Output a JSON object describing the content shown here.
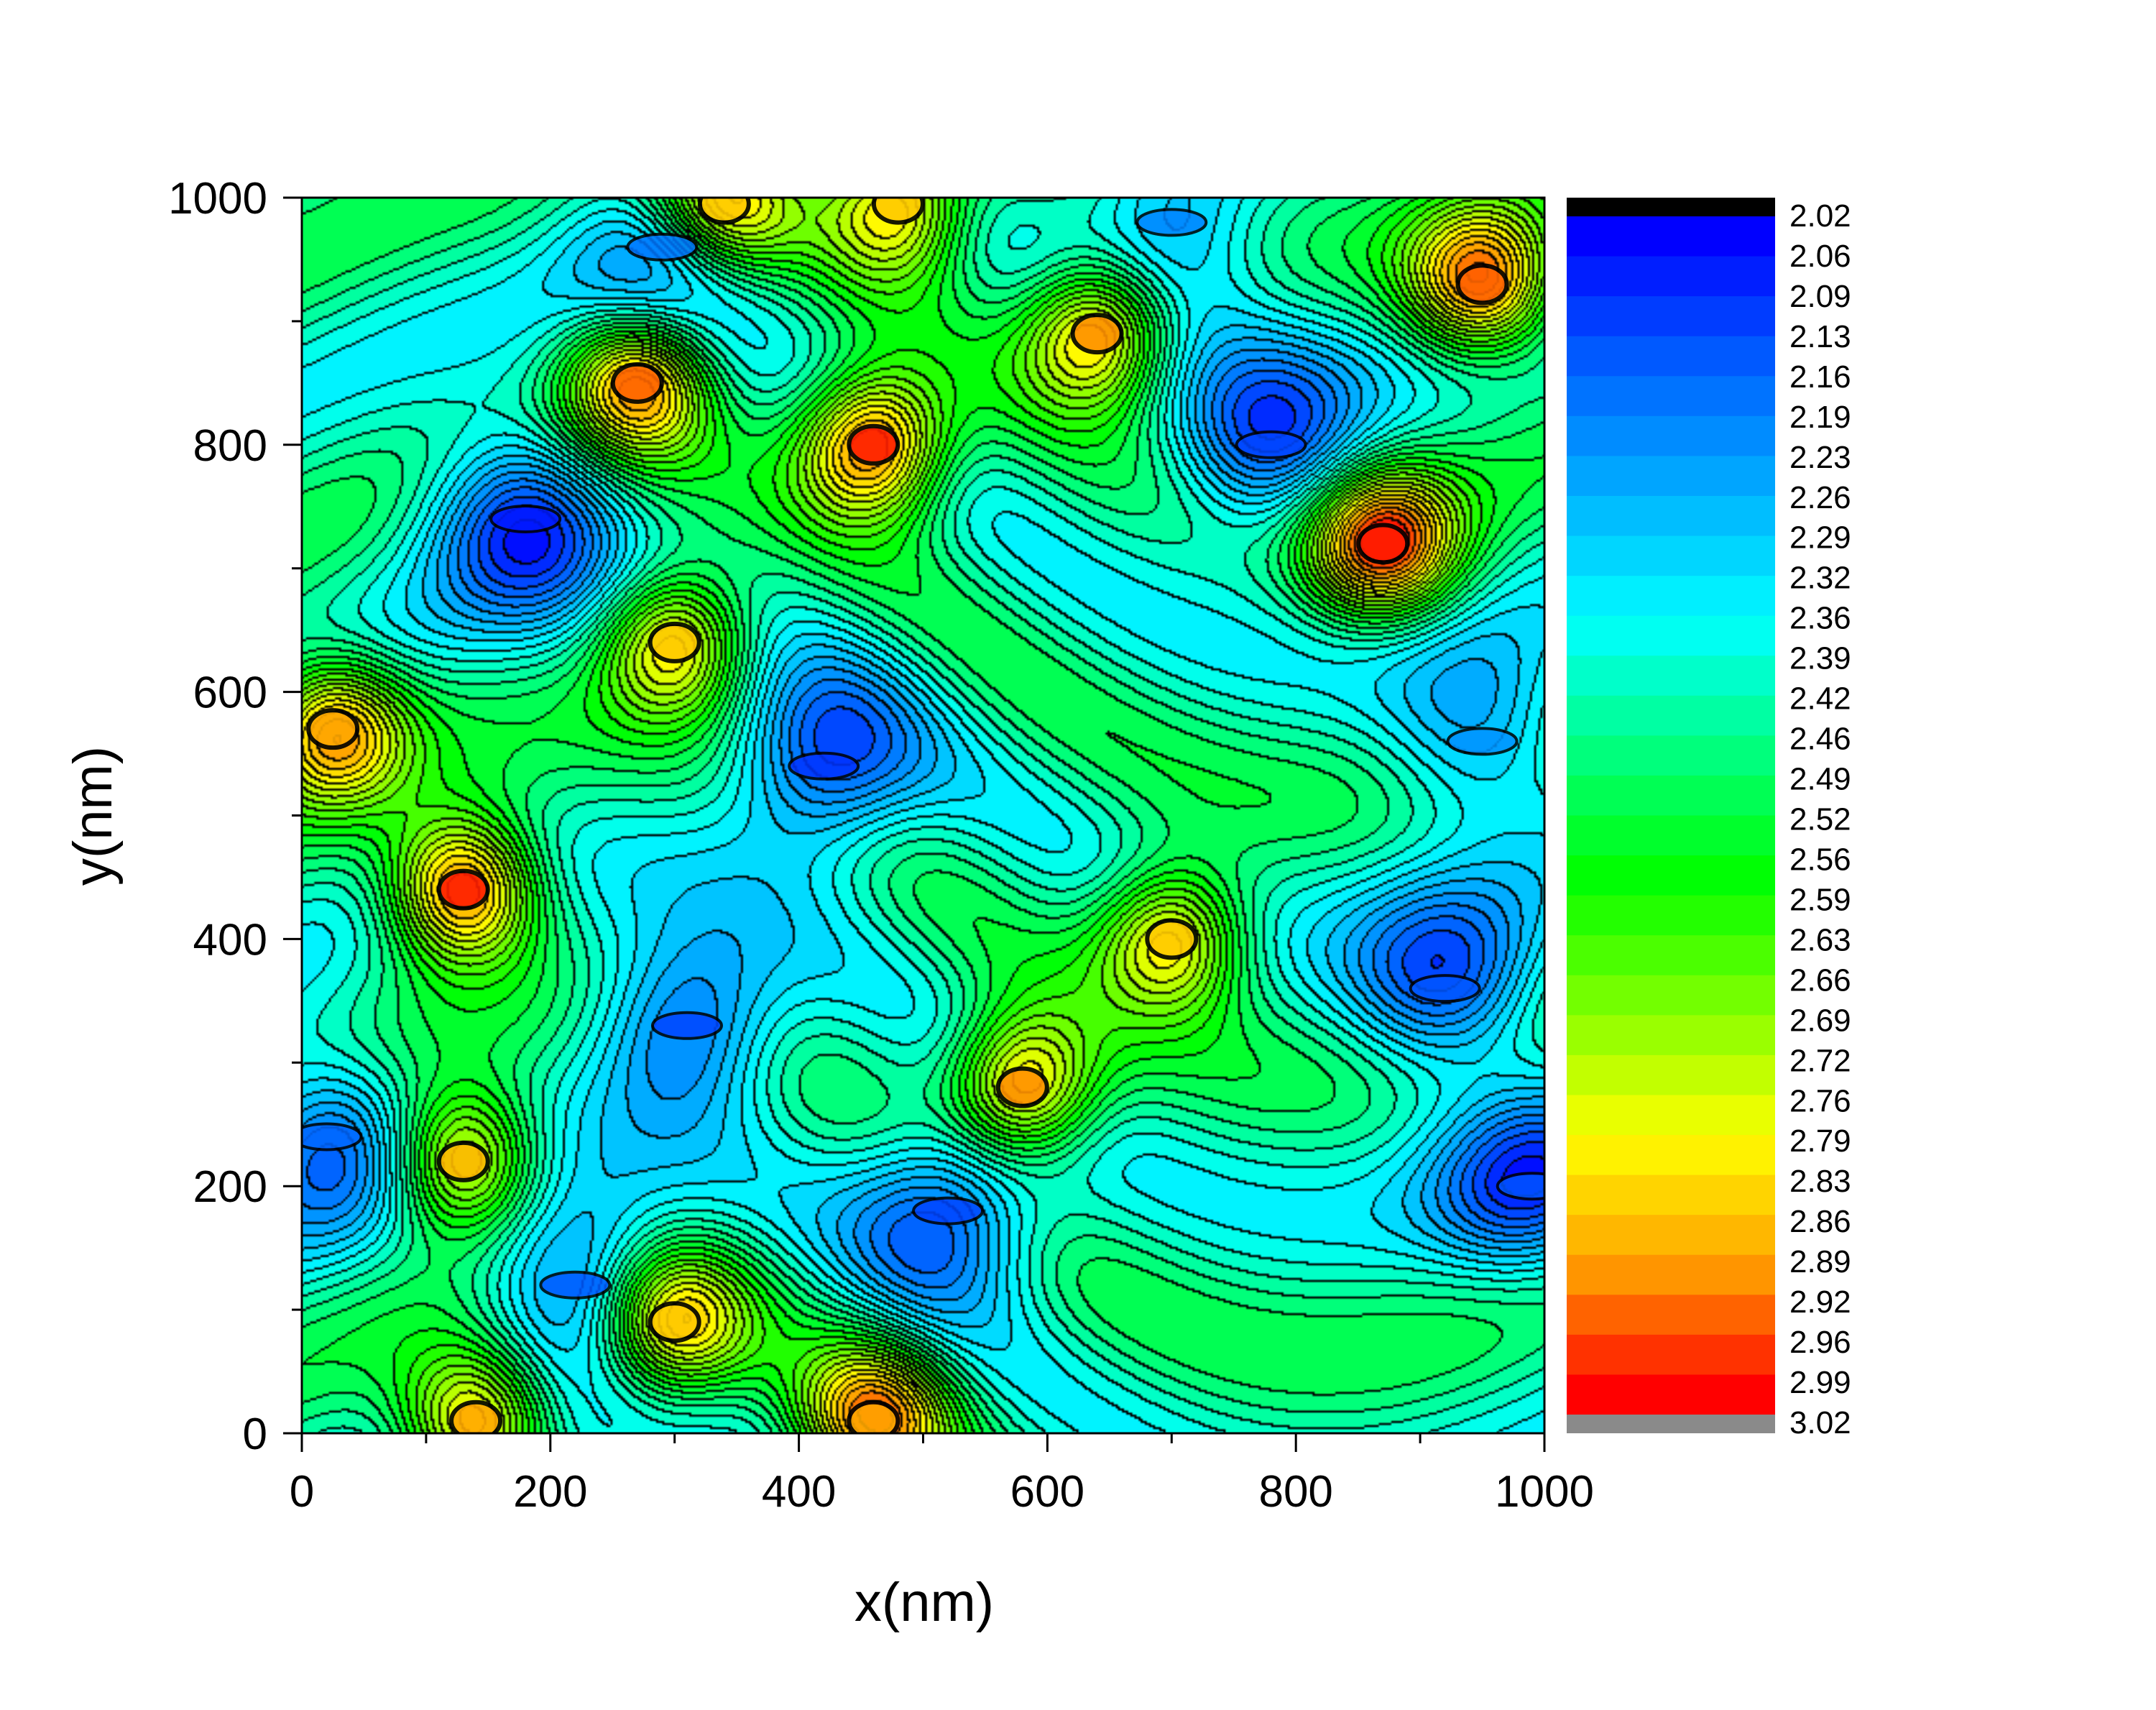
{
  "chart_data": {
    "type": "heatmap",
    "subtype": "filled-contour",
    "title": "",
    "xlabel": "x(nm)",
    "ylabel": "y(nm)",
    "xlim": [
      0,
      1000
    ],
    "ylim": [
      0,
      1000
    ],
    "x_ticks": [
      "0",
      "200",
      "400",
      "600",
      "800",
      "1000"
    ],
    "y_ticks": [
      "0",
      "200",
      "400",
      "600",
      "800",
      "1000"
    ],
    "grid": false,
    "legend": "colorbar-right",
    "colorbar": {
      "levels": [
        "2.02",
        "2.06",
        "2.09",
        "2.13",
        "2.16",
        "2.19",
        "2.23",
        "2.26",
        "2.29",
        "2.32",
        "2.36",
        "2.39",
        "2.42",
        "2.46",
        "2.49",
        "2.52",
        "2.56",
        "2.59",
        "2.63",
        "2.66",
        "2.69",
        "2.72",
        "2.76",
        "2.79",
        "2.83",
        "2.86",
        "2.89",
        "2.92",
        "2.96",
        "2.99",
        "3.02"
      ],
      "top_color": "#000000",
      "bottom_color": "#8a8a8a",
      "colormap": [
        "#0000ff",
        "#0060ff",
        "#00b0ff",
        "#00ffff",
        "#00ff80",
        "#00ff00",
        "#80ff00",
        "#ffff00",
        "#ffa000",
        "#ff0000"
      ]
    },
    "features": {
      "maxima": [
        {
          "x": 130,
          "y": 440,
          "value": 3.0
        },
        {
          "x": 460,
          "y": 800,
          "value": 3.0
        },
        {
          "x": 870,
          "y": 720,
          "value": 3.0
        },
        {
          "x": 270,
          "y": 850,
          "value": 2.95
        },
        {
          "x": 950,
          "y": 930,
          "value": 2.95
        },
        {
          "x": 640,
          "y": 890,
          "value": 2.92
        },
        {
          "x": 580,
          "y": 280,
          "value": 2.92
        },
        {
          "x": 460,
          "y": 10,
          "value": 2.9
        },
        {
          "x": 140,
          "y": 10,
          "value": 2.9
        },
        {
          "x": 130,
          "y": 220,
          "value": 2.88
        },
        {
          "x": 300,
          "y": 640,
          "value": 2.86
        },
        {
          "x": 25,
          "y": 570,
          "value": 2.9
        },
        {
          "x": 300,
          "y": 90,
          "value": 2.86
        },
        {
          "x": 700,
          "y": 400,
          "value": 2.86
        },
        {
          "x": 340,
          "y": 995,
          "value": 2.86
        },
        {
          "x": 480,
          "y": 995,
          "value": 2.86
        }
      ],
      "minima": [
        {
          "x": 180,
          "y": 740,
          "value": 2.05
        },
        {
          "x": 420,
          "y": 540,
          "value": 2.08
        },
        {
          "x": 310,
          "y": 330,
          "value": 2.1
        },
        {
          "x": 520,
          "y": 180,
          "value": 2.1
        },
        {
          "x": 220,
          "y": 120,
          "value": 2.12
        },
        {
          "x": 780,
          "y": 800,
          "value": 2.1
        },
        {
          "x": 920,
          "y": 360,
          "value": 2.12
        },
        {
          "x": 990,
          "y": 200,
          "value": 2.12
        },
        {
          "x": 20,
          "y": 240,
          "value": 2.14
        },
        {
          "x": 290,
          "y": 960,
          "value": 2.16
        },
        {
          "x": 700,
          "y": 980,
          "value": 2.18
        },
        {
          "x": 950,
          "y": 560,
          "value": 2.2
        }
      ]
    }
  }
}
